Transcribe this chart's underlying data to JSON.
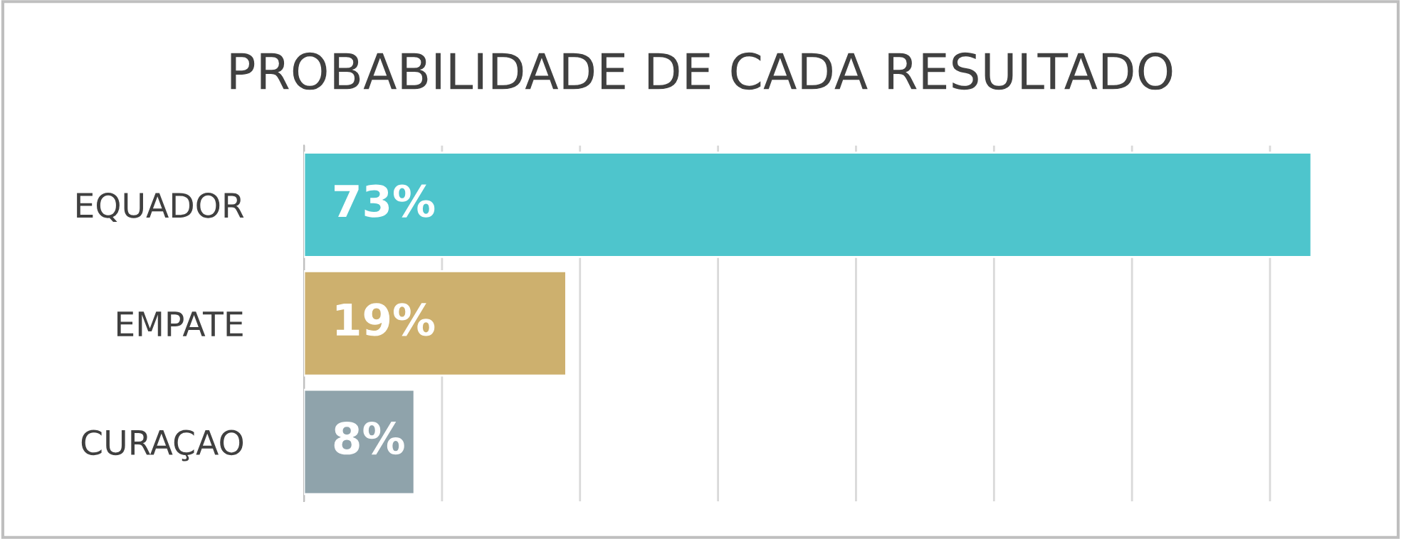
{
  "chart_data": {
    "type": "bar",
    "orientation": "horizontal",
    "title": "PROBABILIDADE DE CADA RESULTADO",
    "categories": [
      "EQUADOR",
      "EMPATE",
      "CURAÇAO"
    ],
    "values": [
      73,
      19,
      8
    ],
    "value_labels": [
      "73%",
      "19%",
      "8%"
    ],
    "colors": [
      "#4ec5cc",
      "#cdb06e",
      "#8fa3ab"
    ],
    "grid": "x",
    "tick_labels": "y"
  }
}
